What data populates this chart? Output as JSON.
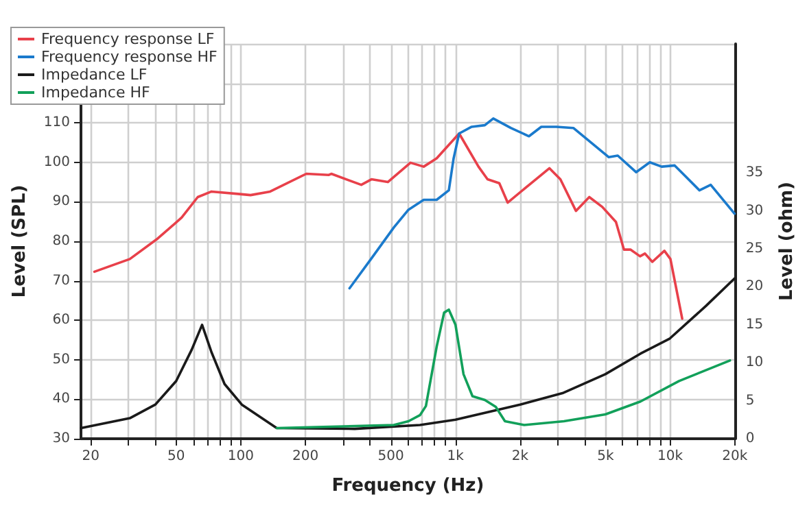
{
  "chart_data": {
    "type": "line",
    "xlabel": "Frequency (Hz)",
    "ylabel": "Level (SPL)",
    "y2label": "Level (ohm)",
    "log": "x",
    "grid": true,
    "legend": "top left",
    "marker": "none",
    "line_style": "solid",
    "xlim": [
      18,
      20000
    ],
    "xticks": [
      {
        "value": 20,
        "label": "20"
      },
      {
        "value": 30,
        "label": null
      },
      {
        "value": 40,
        "label": null
      },
      {
        "value": 50,
        "label": "50"
      },
      {
        "value": 60,
        "label": null
      },
      {
        "value": 70,
        "label": null
      },
      {
        "value": 80,
        "label": null
      },
      {
        "value": 90,
        "label": null
      },
      {
        "value": 100,
        "label": "100"
      },
      {
        "value": 200,
        "label": "200"
      },
      {
        "value": 300,
        "label": null
      },
      {
        "value": 400,
        "label": null
      },
      {
        "value": 500,
        "label": "500"
      },
      {
        "value": 600,
        "label": null
      },
      {
        "value": 700,
        "label": null
      },
      {
        "value": 800,
        "label": null
      },
      {
        "value": 900,
        "label": null
      },
      {
        "value": 1000,
        "label": "1k"
      },
      {
        "value": 2000,
        "label": "2k"
      },
      {
        "value": 3000,
        "label": null
      },
      {
        "value": 4000,
        "label": null
      },
      {
        "value": 5000,
        "label": "5k"
      },
      {
        "value": 6000,
        "label": null
      },
      {
        "value": 7000,
        "label": null
      },
      {
        "value": 8000,
        "label": null
      },
      {
        "value": 9000,
        "label": null
      },
      {
        "value": 10000,
        "label": "10k"
      },
      {
        "value": 20000,
        "label": "20k"
      }
    ],
    "ylim": [
      30,
      130
    ],
    "yticks": [
      30,
      40,
      50,
      60,
      70,
      80,
      90,
      100,
      110,
      {
        "value": 120,
        "label": null
      },
      {
        "value": 130,
        "label": null
      }
    ],
    "y2lim": [
      0,
      52
    ],
    "y2ticks": [
      0,
      5,
      10,
      15,
      20,
      25,
      30,
      35
    ],
    "series": [
      {
        "name": "Frequency response LF",
        "color": "#e8404a",
        "x": [
          20.8,
          30.4,
          41,
          53,
          63,
          73,
          97,
          111,
          137,
          202,
          257,
          264,
          364,
          406,
          484,
          617,
          711,
          817,
          1040,
          1280,
          1410,
          1600,
          1750,
          2250,
          2740,
          3080,
          3640,
          4200,
          4830,
          5590,
          6090,
          6530,
          7240,
          7630,
          8260,
          9400,
          10030,
          11380
        ],
        "values": [
          72.3,
          75.5,
          80.7,
          86,
          91.2,
          92.6,
          92,
          91.7,
          92.6,
          97.1,
          96.8,
          97.1,
          94.3,
          95.7,
          95,
          99.9,
          98.9,
          101,
          107.3,
          98.9,
          95.7,
          94.7,
          89.8,
          94.7,
          98.5,
          95.7,
          87.7,
          91.2,
          88.7,
          84.9,
          77.9,
          77.9,
          76.2,
          76.9,
          74.8,
          77.6,
          75.5,
          60.4
        ]
      },
      {
        "name": "Frequency response HF",
        "color": "#1a7acc",
        "x": [
          321,
          404,
          516,
          604,
          711,
          817,
          931,
          980,
          1040,
          1190,
          1370,
          1500,
          1810,
          2200,
          2510,
          2950,
          3540,
          5180,
          5700,
          6940,
          8040,
          9130,
          10500,
          13700,
          15450,
          19940
        ],
        "values": [
          68.1,
          75.5,
          83.5,
          88,
          90.5,
          90.5,
          92.9,
          101,
          107.3,
          109,
          109.4,
          111.1,
          108.7,
          106.6,
          109,
          109,
          108.7,
          101.3,
          101.7,
          97.5,
          100,
          98.9,
          99.2,
          92.9,
          94.3,
          87
        ]
      },
      {
        "name": "Impedance LF",
        "color": "#1a1a1a",
        "axis": "y2",
        "x": [
          18,
          30.4,
          40,
          50,
          59,
          66,
          73,
          84,
          101,
          147,
          339,
          683,
          1000,
          2000,
          3150,
          4990,
          7270,
          9970,
          14700,
          19950
        ],
        "values": [
          1.4,
          2.7,
          4.5,
          7.6,
          11.7,
          15,
          11.4,
          7.2,
          4.5,
          1.4,
          1.3,
          1.8,
          2.5,
          4.5,
          6,
          8.5,
          11.2,
          13.2,
          17.5,
          21.1
        ]
      },
      {
        "name": "Impedance HF",
        "color": "#12a05a",
        "axis": "y2",
        "x": [
          147,
          516,
          604,
          683,
          728,
          817,
          885,
          931,
          1000,
          1090,
          1200,
          1370,
          1540,
          1700,
          2090,
          3200,
          4990,
          7270,
          11000,
          19000
        ],
        "values": [
          1.4,
          1.8,
          2.3,
          3.1,
          4.3,
          12.1,
          16.6,
          17,
          15,
          8.5,
          5.6,
          5.1,
          4.2,
          2.3,
          1.8,
          2.3,
          3.2,
          4.9,
          7.6,
          10.3
        ]
      }
    ]
  }
}
